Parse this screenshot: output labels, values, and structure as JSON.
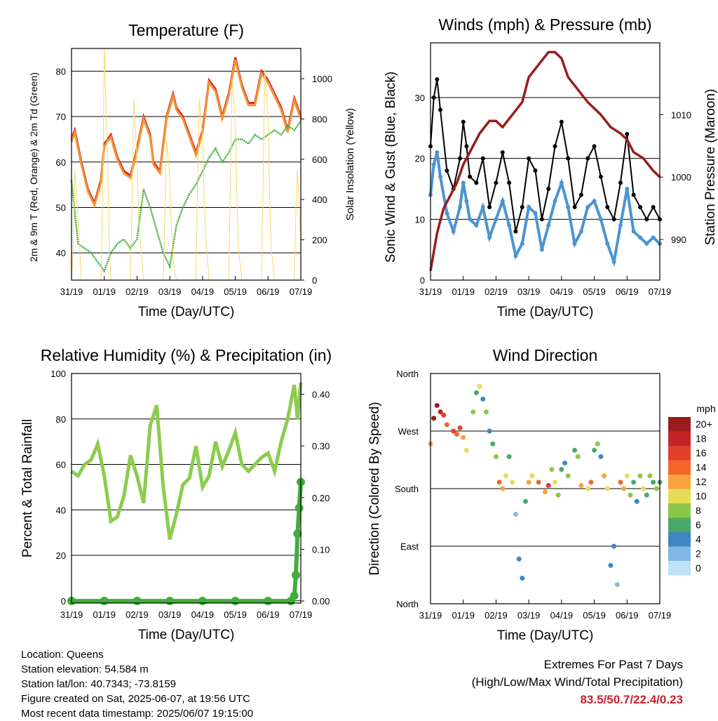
{
  "chart_data": [
    {
      "type": "line",
      "title": "Temperature (F)",
      "xlabel": "Time (Day/UTC)",
      "ylabel": "2m & 9m T (Red, Orange) & 2m Td (Green)",
      "y2label": "Solar Insolation (Yellow)",
      "x_ticks": [
        "31/19",
        "01/19",
        "02/19",
        "03/19",
        "04/19",
        "05/19",
        "06/19",
        "07/19"
      ],
      "ylim": [
        34,
        85
      ],
      "y_ticks": [
        40,
        50,
        60,
        70,
        80
      ],
      "y2lim": [
        0,
        1150
      ],
      "y2_ticks": [
        0,
        200,
        400,
        600,
        800,
        1000
      ],
      "grid": true,
      "series": [
        {
          "color": "#d3232a",
          "x_day": [
            0,
            0.1,
            0.3,
            0.5,
            0.7,
            0.9,
            1.0,
            1.2,
            1.4,
            1.6,
            1.8,
            2.0,
            2.2,
            2.4,
            2.5,
            2.7,
            2.9,
            3.1,
            3.2,
            3.4,
            3.6,
            3.8,
            4.0,
            4.2,
            4.4,
            4.6,
            4.8,
            5.0,
            5.2,
            5.4,
            5.6,
            5.8,
            6.0,
            6.2,
            6.4,
            6.6,
            6.8,
            7.0
          ],
          "y": [
            65,
            67,
            60,
            54,
            51,
            56,
            64,
            66,
            61,
            58,
            57,
            63,
            70,
            66,
            60,
            58,
            70,
            75,
            72,
            70,
            66,
            62,
            67,
            78,
            76,
            70,
            75,
            83,
            77,
            73,
            73,
            80,
            78,
            75,
            72,
            67,
            74,
            70
          ]
        },
        {
          "color": "#f59433",
          "x_day": [
            0,
            0.1,
            0.3,
            0.5,
            0.7,
            0.9,
            1.0,
            1.2,
            1.4,
            1.6,
            1.8,
            2.0,
            2.2,
            2.4,
            2.5,
            2.7,
            2.9,
            3.1,
            3.2,
            3.4,
            3.6,
            3.8,
            4.0,
            4.2,
            4.4,
            4.6,
            4.8,
            5.0,
            5.2,
            5.4,
            5.6,
            5.8,
            6.0,
            6.2,
            6.4,
            6.6,
            6.8,
            7.0
          ],
          "y": [
            64.5,
            66.5,
            59.5,
            53.5,
            50.5,
            55.5,
            63.5,
            65.5,
            60.5,
            57.5,
            56.5,
            62.5,
            69.5,
            65.5,
            59.5,
            57.5,
            69.5,
            74.5,
            71.5,
            69.5,
            65.5,
            61.5,
            66.5,
            77.5,
            75.5,
            69.5,
            74.5,
            82.5,
            76.5,
            72.5,
            72.5,
            79.5,
            77.5,
            74.5,
            71.5,
            66.5,
            73.5,
            69.5
          ]
        },
        {
          "color": "#3fae3a",
          "x_day": [
            0,
            0.2,
            0.4,
            0.6,
            0.8,
            1.0,
            1.2,
            1.4,
            1.6,
            1.8,
            2.0,
            2.2,
            2.4,
            2.6,
            2.8,
            3.0,
            3.2,
            3.4,
            3.6,
            3.8,
            4.0,
            4.2,
            4.4,
            4.6,
            4.8,
            5.0,
            5.2,
            5.4,
            5.6,
            5.8,
            6.0,
            6.2,
            6.4,
            6.6,
            6.8,
            7.0
          ],
          "y": [
            56,
            42,
            41,
            40,
            38,
            36,
            40,
            42,
            43,
            41,
            43,
            54,
            50,
            45,
            40,
            37,
            46,
            50,
            53,
            55,
            58,
            61,
            63,
            60,
            62,
            65,
            65,
            64,
            66,
            65,
            66,
            67,
            66,
            68,
            67,
            69
          ]
        },
        {
          "color": "#f6d96b",
          "x_day": [
            0,
            0.05,
            0.1,
            0.2,
            0.3,
            0.9,
            0.95,
            1.0,
            1.1,
            1.15,
            1.2,
            1.3,
            1.8,
            1.85,
            1.9,
            2.0,
            2.05,
            2.1,
            2.2,
            2.8,
            2.85,
            2.9,
            3.0,
            3.05,
            3.1,
            3.2,
            3.8,
            3.85,
            3.9,
            4.0,
            4.05,
            4.1,
            4.2,
            4.8,
            4.85,
            4.9,
            5.0,
            5.05,
            5.1,
            5.2,
            5.8,
            5.85,
            5.9,
            6.0,
            6.05,
            6.1,
            6.2,
            6.8,
            6.85,
            6.9,
            7.0
          ],
          "y": [
            0,
            150,
            550,
            300,
            0,
            0,
            400,
            1150,
            600,
            200,
            0,
            0,
            0,
            400,
            900,
            600,
            300,
            200,
            0,
            0,
            300,
            700,
            500,
            250,
            100,
            0,
            0,
            500,
            900,
            700,
            400,
            200,
            0,
            0,
            500,
            1000,
            800,
            400,
            150,
            0,
            0,
            500,
            1050,
            800,
            400,
            150,
            0,
            0,
            350,
            550,
            200
          ]
        }
      ]
    },
    {
      "type": "scatter",
      "title": "Winds (mph) & Pressure (mb)",
      "xlabel": "Time (Day/UTC)",
      "ylabel": "Sonic Wind & Gust (Blue, Black)",
      "y2label": "Station Pressure (Maroon)",
      "x_ticks": [
        "31/19",
        "01/19",
        "02/19",
        "03/19",
        "04/19",
        "05/19",
        "06/19",
        "07/19"
      ],
      "ylim": [
        0,
        39
      ],
      "y_ticks": [
        0,
        10,
        20,
        30
      ],
      "y2lim": [
        983.5,
        1021.5
      ],
      "y2_ticks": [
        990,
        1000,
        1010
      ],
      "grid": true,
      "series": [
        {
          "color": "#000000",
          "x_day": [
            0,
            0.1,
            0.2,
            0.3,
            0.5,
            0.7,
            0.9,
            1.0,
            1.1,
            1.2,
            1.4,
            1.6,
            1.8,
            2.0,
            2.2,
            2.4,
            2.6,
            2.8,
            3.0,
            3.2,
            3.4,
            3.6,
            3.8,
            4.0,
            4.2,
            4.4,
            4.6,
            4.8,
            5.0,
            5.2,
            5.4,
            5.6,
            5.8,
            6.0,
            6.2,
            6.4,
            6.6,
            6.8,
            7.0
          ],
          "y": [
            22,
            30,
            33,
            28,
            18,
            15,
            20,
            26,
            22,
            17,
            16,
            20,
            12,
            16,
            21,
            16,
            8,
            12,
            20,
            18,
            10,
            15,
            22,
            26,
            20,
            12,
            14,
            20,
            22,
            17,
            12,
            10,
            16,
            24,
            14,
            12,
            10,
            12,
            10
          ]
        },
        {
          "color": "#4b94d1",
          "x_day": [
            0,
            0.1,
            0.2,
            0.3,
            0.5,
            0.7,
            0.9,
            1.0,
            1.1,
            1.2,
            1.4,
            1.6,
            1.8,
            2.0,
            2.2,
            2.4,
            2.6,
            2.8,
            3.0,
            3.2,
            3.4,
            3.6,
            3.8,
            4.0,
            4.2,
            4.4,
            4.6,
            4.8,
            5.0,
            5.2,
            5.4,
            5.6,
            5.8,
            6.0,
            6.2,
            6.4,
            6.6,
            6.8,
            7.0
          ],
          "y": [
            14,
            19,
            21,
            17,
            11,
            8,
            12,
            16,
            13,
            10,
            9,
            12,
            7,
            10,
            13,
            9,
            4,
            6,
            12,
            11,
            5,
            9,
            13,
            16,
            12,
            6,
            8,
            12,
            13,
            10,
            6,
            3,
            9,
            15,
            8,
            7,
            6,
            7,
            6
          ]
        },
        {
          "color": "#9b1c1c",
          "x_day": [
            0,
            0.2,
            0.4,
            0.6,
            0.8,
            1.0,
            1.2,
            1.5,
            1.8,
            2.0,
            2.2,
            2.5,
            2.8,
            3.0,
            3.3,
            3.6,
            3.8,
            4.0,
            4.2,
            4.5,
            4.8,
            5.2,
            5.5,
            5.8,
            6.0,
            6.2,
            6.5,
            6.8,
            7.0
          ],
          "y": [
            985,
            991,
            995,
            997,
            999,
            1002,
            1004,
            1007,
            1009,
            1009,
            1008,
            1010,
            1012,
            1016,
            1018,
            1020,
            1020,
            1019,
            1016,
            1014,
            1012,
            1010,
            1008,
            1007,
            1006,
            1004,
            1003,
            1001,
            1000
          ]
        }
      ]
    },
    {
      "type": "line",
      "title": "Relative Humidity (%) & Precipitation (in)",
      "xlabel": "Time (Day/UTC)",
      "ylabel": "Percent & Total Rainfall",
      "x_ticks": [
        "31/19",
        "01/19",
        "02/19",
        "03/19",
        "04/19",
        "05/19",
        "06/19",
        "07/19"
      ],
      "ylim": [
        -1,
        100
      ],
      "y_ticks": [
        0,
        20,
        40,
        60,
        80,
        100
      ],
      "y2lim": [
        -0.004,
        0.44
      ],
      "y2_ticks": [
        "0.00",
        "0.10",
        "0.20",
        "0.30",
        "0.40"
      ],
      "grid": true,
      "series": [
        {
          "color": "#8ccc4e",
          "x_day": [
            0,
            0.2,
            0.4,
            0.6,
            0.8,
            1.0,
            1.2,
            1.4,
            1.6,
            1.8,
            2.0,
            2.2,
            2.4,
            2.6,
            2.8,
            3.0,
            3.2,
            3.4,
            3.6,
            3.8,
            4.0,
            4.2,
            4.4,
            4.6,
            4.8,
            5.0,
            5.2,
            5.4,
            5.6,
            5.8,
            6.0,
            6.2,
            6.4,
            6.6,
            6.8,
            6.9,
            7.0
          ],
          "y": [
            57,
            55,
            60,
            62,
            69,
            55,
            35,
            37,
            46,
            64,
            55,
            43,
            77,
            86,
            50,
            27,
            38,
            51,
            54,
            68,
            50,
            55,
            70,
            59,
            66,
            74,
            60,
            57,
            60,
            63,
            65,
            57,
            70,
            80,
            95,
            80,
            96
          ]
        },
        {
          "color": "#3fae3a",
          "x_day": [
            0,
            1,
            2,
            3,
            4,
            5,
            6,
            6.7,
            6.8,
            6.85,
            6.9,
            6.95,
            7.0
          ],
          "y": [
            0,
            0,
            0,
            0,
            0,
            0,
            0,
            0,
            0.01,
            0.05,
            0.13,
            0.18,
            0.23
          ]
        }
      ]
    },
    {
      "type": "scatter",
      "title": "Wind Direction",
      "xlabel": "Time (Day/UTC)",
      "ylabel": "Direction (Colored By Speed)",
      "x_ticks": [
        "31/19",
        "01/19",
        "02/19",
        "03/19",
        "04/19",
        "05/19",
        "06/19",
        "07/19"
      ],
      "y_ticks": [
        "North",
        "East",
        "South",
        "West",
        "North"
      ],
      "ylim": [
        0,
        360
      ],
      "grid": true,
      "legend": {
        "title": "mph",
        "labels": [
          "20+",
          "18",
          "16",
          "14",
          "12",
          "10",
          "8",
          "6",
          "4",
          "2",
          "0"
        ],
        "colors": [
          "#9b1c1c",
          "#c4232a",
          "#e2402a",
          "#f2662c",
          "#f7a43c",
          "#e7dc57",
          "#8cc74a",
          "#4aa86a",
          "#3f86c2",
          "#7fb9e4",
          "#bfe2f7"
        ],
        "placement": "right"
      },
      "points": [
        [
          0,
          250,
          12
        ],
        [
          0.1,
          290,
          20
        ],
        [
          0.2,
          310,
          20
        ],
        [
          0.3,
          300,
          18
        ],
        [
          0.4,
          295,
          16
        ],
        [
          0.5,
          280,
          14
        ],
        [
          0.7,
          270,
          16
        ],
        [
          0.8,
          265,
          14
        ],
        [
          0.9,
          275,
          16
        ],
        [
          1.0,
          260,
          12
        ],
        [
          1.1,
          240,
          10
        ],
        [
          1.3,
          300,
          8
        ],
        [
          1.4,
          330,
          6
        ],
        [
          1.5,
          340,
          10
        ],
        [
          1.6,
          320,
          4
        ],
        [
          1.7,
          300,
          8
        ],
        [
          1.8,
          270,
          4
        ],
        [
          1.9,
          250,
          6
        ],
        [
          2.0,
          230,
          8
        ],
        [
          2.1,
          190,
          14
        ],
        [
          2.2,
          180,
          12
        ],
        [
          2.3,
          200,
          10
        ],
        [
          2.4,
          230,
          6
        ],
        [
          2.5,
          190,
          10
        ],
        [
          2.6,
          140,
          2
        ],
        [
          2.7,
          70,
          4
        ],
        [
          2.8,
          40,
          4
        ],
        [
          2.9,
          160,
          6
        ],
        [
          3.0,
          190,
          12
        ],
        [
          3.1,
          200,
          10
        ],
        [
          3.3,
          190,
          14
        ],
        [
          3.5,
          175,
          12
        ],
        [
          3.6,
          185,
          16
        ],
        [
          3.7,
          210,
          8
        ],
        [
          3.8,
          190,
          10
        ],
        [
          3.9,
          170,
          8
        ],
        [
          4.0,
          210,
          6
        ],
        [
          4.1,
          220,
          4
        ],
        [
          4.2,
          200,
          8
        ],
        [
          4.4,
          240,
          6
        ],
        [
          4.5,
          230,
          8
        ],
        [
          4.6,
          185,
          12
        ],
        [
          4.8,
          180,
          10
        ],
        [
          4.9,
          190,
          14
        ],
        [
          5.0,
          240,
          6
        ],
        [
          5.1,
          250,
          8
        ],
        [
          5.2,
          230,
          4
        ],
        [
          5.3,
          200,
          12
        ],
        [
          5.4,
          180,
          10
        ],
        [
          5.5,
          60,
          4
        ],
        [
          5.6,
          90,
          4
        ],
        [
          5.7,
          30,
          2
        ],
        [
          5.8,
          190,
          14
        ],
        [
          5.9,
          180,
          12
        ],
        [
          6.0,
          200,
          10
        ],
        [
          6.1,
          170,
          8
        ],
        [
          6.2,
          190,
          6
        ],
        [
          6.3,
          160,
          4
        ],
        [
          6.4,
          200,
          8
        ],
        [
          6.5,
          180,
          10
        ],
        [
          6.6,
          170,
          6
        ],
        [
          6.7,
          200,
          8
        ],
        [
          6.8,
          190,
          6
        ],
        [
          6.9,
          180,
          8
        ],
        [
          7.0,
          190,
          6
        ]
      ]
    }
  ],
  "info_lines": [
    "Location: Queens",
    "Station elevation: 54.584 m",
    "Station lat/lon: 40.7343; -73.8159",
    "Figure created on Sat, 2025-06-07, at 19:56 UTC",
    "Most recent data timestamp: 2025/06/07 19:15:00"
  ],
  "extremes": {
    "title": "Extremes For Past 7 Days",
    "subtitle": "(High/Low/Max Wind/Total Precipitation)",
    "values": "83.5/50.7/22.4/0.23"
  }
}
